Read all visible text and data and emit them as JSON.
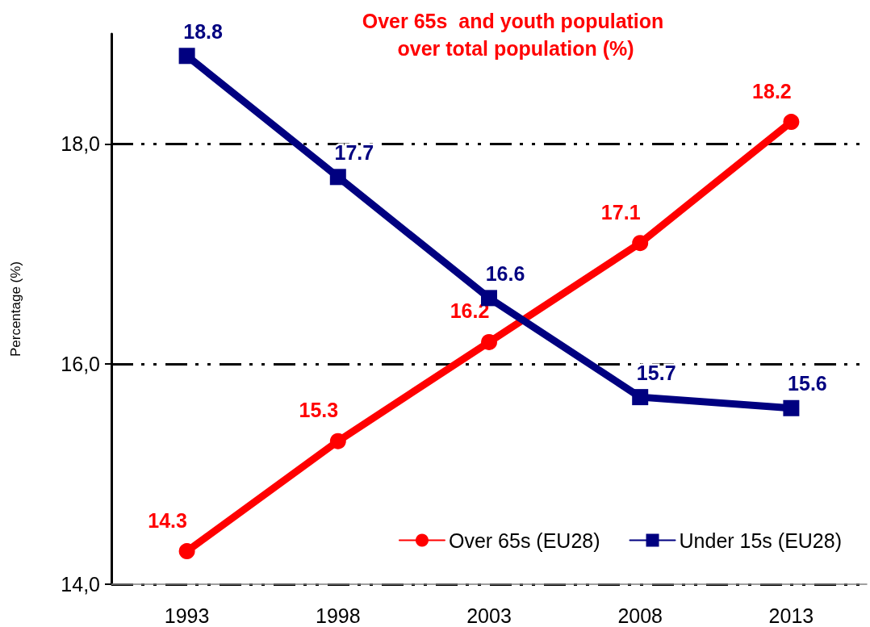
{
  "chart_data": {
    "type": "line",
    "title": "Over 65s  and youth population over total population (%)",
    "ylabel": "Percentage (%)",
    "categories": [
      "1993",
      "1998",
      "2003",
      "2008",
      "2013"
    ],
    "series": [
      {
        "name": "Over 65s (EU28)",
        "color": "#ff0000",
        "marker": "circle",
        "values": [
          14.3,
          15.3,
          16.2,
          17.1,
          18.2
        ]
      },
      {
        "name": "Under 15s (EU28)",
        "color": "#000080",
        "marker": "square",
        "values": [
          18.8,
          17.7,
          16.6,
          15.7,
          15.6
        ]
      }
    ],
    "ylim": [
      14,
      19
    ],
    "yticks": [
      {
        "value": 14,
        "label": "14,0"
      },
      {
        "value": 16,
        "label": "16,0"
      },
      {
        "value": 18,
        "label": "18,0"
      }
    ],
    "grid": "y",
    "legend": "bottom right",
    "data_labels": true,
    "line_style": "solid"
  }
}
